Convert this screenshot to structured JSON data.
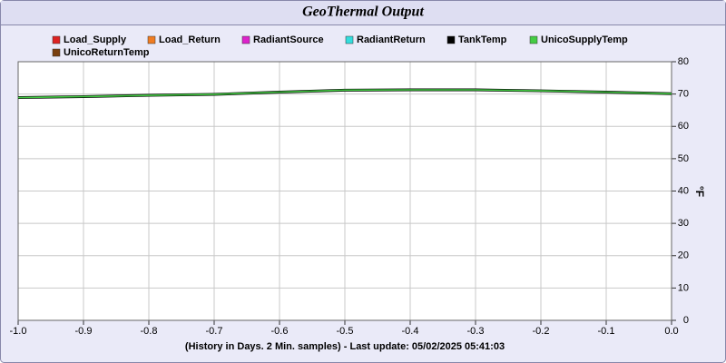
{
  "chart_data": {
    "type": "line",
    "title": "GeoThermal Output",
    "x_label": "(History in Days. 2 Min. samples) - Last update: 05/02/2025 05:41:03",
    "y_label": "°F",
    "x": [
      -1.0,
      -0.9,
      -0.8,
      -0.7,
      -0.6,
      -0.5,
      -0.4,
      -0.3,
      -0.2,
      -0.1,
      0.0
    ],
    "xlim": [
      -1.0,
      0.0
    ],
    "xticks": [
      {
        "value": -1.0,
        "label": "-1.0"
      },
      -0.9,
      -0.8,
      -0.7,
      -0.6,
      -0.5,
      -0.4,
      -0.3,
      -0.2,
      -0.1,
      {
        "value": 0.0,
        "label": "0.0"
      }
    ],
    "ylim": [
      0,
      80
    ],
    "yticks": [
      0,
      10,
      20,
      30,
      40,
      50,
      60,
      70,
      80
    ],
    "grid": true,
    "series": [
      {
        "name": "Load_Supply",
        "color": "#dd2222",
        "values": [
          null,
          null,
          null,
          null,
          null,
          null,
          null,
          null,
          null,
          null,
          null
        ]
      },
      {
        "name": "Load_Return",
        "color": "#f07c22",
        "values": [
          null,
          null,
          null,
          null,
          null,
          null,
          null,
          null,
          null,
          null,
          null
        ]
      },
      {
        "name": "RadiantSource",
        "color": "#dd22cc",
        "values": [
          null,
          null,
          null,
          null,
          null,
          null,
          null,
          null,
          null,
          null,
          null
        ]
      },
      {
        "name": "RadiantReturn",
        "color": "#33dddd",
        "values": [
          null,
          null,
          null,
          null,
          null,
          null,
          null,
          null,
          null,
          null,
          null
        ]
      },
      {
        "name": "TankTemp",
        "color": "#000000",
        "values": [
          68.9,
          69.2,
          69.6,
          69.9,
          70.6,
          71.2,
          71.3,
          71.3,
          71.0,
          70.6,
          70.1
        ]
      },
      {
        "name": "UnicoSupplyTemp",
        "color": "#44cc44",
        "values": [
          68.9,
          69.2,
          69.6,
          69.9,
          70.6,
          71.2,
          71.3,
          71.3,
          71.0,
          70.6,
          70.1
        ]
      },
      {
        "name": "UnicoReturnTemp",
        "color": "#7a4010",
        "values": [
          null,
          null,
          null,
          null,
          null,
          null,
          null,
          null,
          null,
          null,
          null
        ]
      }
    ]
  }
}
